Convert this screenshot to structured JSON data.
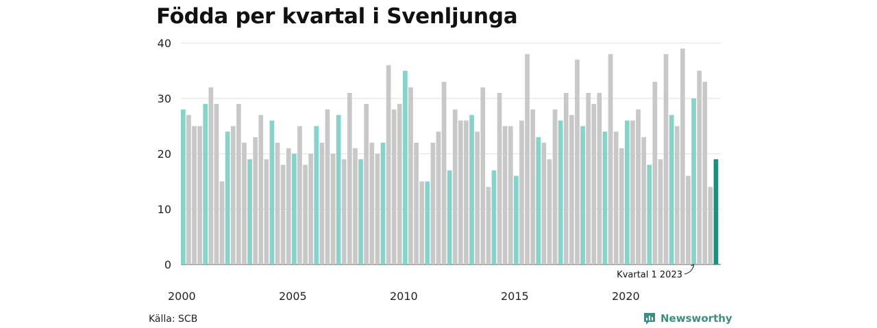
{
  "title": "Födda per kvartal i Svenljunga",
  "source": "Källa: SCB",
  "brand": "Newsworthy",
  "colors": {
    "highlight": "#88d3c8",
    "bar": "#c8c8c8",
    "latest": "#1d8f80",
    "grid": "#dddddd",
    "brand": "#3a8f7f"
  },
  "chart_data": {
    "type": "bar",
    "start_year": 2000,
    "x_tick_labels": [
      "2000",
      "2005",
      "2010",
      "2015",
      "2020"
    ],
    "ylim": [
      0,
      40
    ],
    "y_ticks": [
      0,
      10,
      20,
      30,
      40
    ],
    "grid": true,
    "highlight_quarter": 1,
    "values": [
      28,
      27,
      25,
      25,
      29,
      32,
      29,
      15,
      24,
      25,
      29,
      22,
      19,
      23,
      27,
      19,
      26,
      22,
      18,
      21,
      20,
      25,
      18,
      20,
      25,
      22,
      28,
      20,
      27,
      19,
      31,
      21,
      19,
      29,
      22,
      20,
      22,
      36,
      28,
      29,
      35,
      32,
      22,
      15,
      15,
      22,
      24,
      33,
      17,
      28,
      26,
      26,
      27,
      24,
      32,
      14,
      17,
      31,
      25,
      25,
      16,
      26,
      38,
      28,
      23,
      22,
      19,
      28,
      26,
      31,
      27,
      37,
      25,
      31,
      29,
      31,
      24,
      38,
      24,
      21,
      26,
      26,
      28,
      23,
      18,
      33,
      19,
      38,
      27,
      25,
      39,
      16,
      30,
      35,
      33,
      14,
      19
    ],
    "annotation": "Kvartal 1 2023"
  }
}
